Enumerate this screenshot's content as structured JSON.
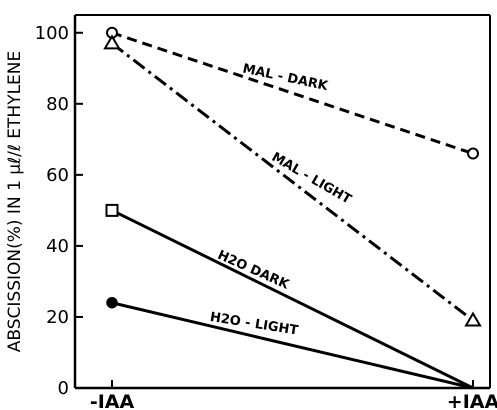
{
  "chart_data": {
    "type": "line",
    "categories": [
      "-IAA",
      "+IAA"
    ],
    "ylabel": "ABSCISSION(%) IN 1 μℓ/ℓ ETHYLENE",
    "xlabel": "",
    "ylim": [
      0,
      105
    ],
    "yticks": [
      0,
      20,
      40,
      60,
      80,
      100
    ],
    "grid": false,
    "series": [
      {
        "name": "MAL - DARK",
        "values": [
          100,
          66
        ],
        "marker": "open-circle",
        "linestyle": "dashed"
      },
      {
        "name": "MAL - LIGHT",
        "values": [
          97,
          19
        ],
        "marker": "open-triangle",
        "linestyle": "dashdot"
      },
      {
        "name": "H2O DARK",
        "values": [
          50,
          0
        ],
        "marker": "open-square",
        "linestyle": "solid"
      },
      {
        "name": "H2O - LIGHT",
        "values": [
          24,
          0
        ],
        "marker": "filled-circle",
        "linestyle": "solid"
      }
    ]
  }
}
